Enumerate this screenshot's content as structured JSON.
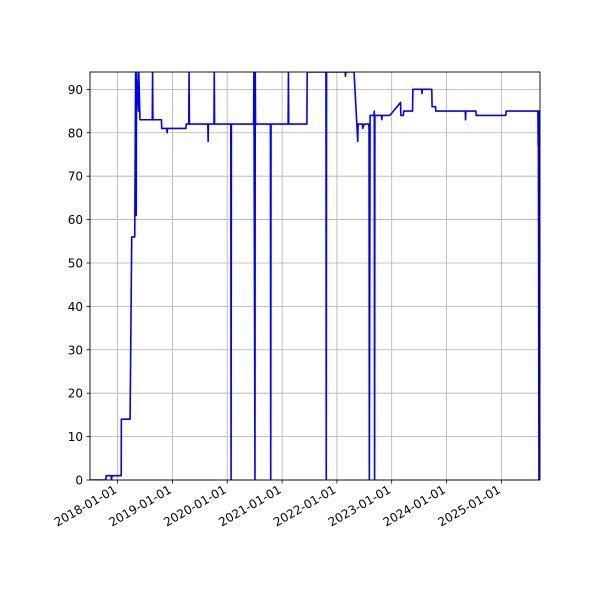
{
  "chart_data": {
    "type": "line",
    "title": "",
    "xlabel": "",
    "ylabel": "",
    "xlim": [
      "2017-07-01",
      "2025-09-15"
    ],
    "ylim": [
      0,
      94
    ],
    "grid": true,
    "line_color": "#0000ff",
    "x_ticks": [
      "2018-01-01",
      "2019-01-01",
      "2020-01-01",
      "2021-01-01",
      "2022-01-01",
      "2023-01-01",
      "2024-01-01",
      "2025-01-01"
    ],
    "y_ticks": [
      0,
      10,
      20,
      30,
      40,
      50,
      60,
      70,
      80,
      90
    ],
    "series": [
      {
        "name": "",
        "points": [
          [
            "2017-07-01",
            0
          ],
          [
            "2017-10-15",
            0
          ],
          [
            "2017-10-16",
            1
          ],
          [
            "2017-11-20",
            1
          ],
          [
            "2017-11-21",
            0
          ],
          [
            "2017-11-25",
            1
          ],
          [
            "2018-01-25",
            1
          ],
          [
            "2018-01-26",
            14
          ],
          [
            "2018-03-25",
            14
          ],
          [
            "2018-04-05",
            56
          ],
          [
            "2018-04-25",
            56
          ],
          [
            "2018-05-01",
            94
          ],
          [
            "2018-05-05",
            61
          ],
          [
            "2018-05-07",
            94
          ],
          [
            "2018-05-20",
            85
          ],
          [
            "2018-05-22",
            94
          ],
          [
            "2018-05-30",
            83
          ],
          [
            "2018-08-20",
            83
          ],
          [
            "2018-08-22",
            94
          ],
          [
            "2018-08-24",
            83
          ],
          [
            "2018-10-20",
            83
          ],
          [
            "2018-10-22",
            81
          ],
          [
            "2018-11-25",
            81
          ],
          [
            "2018-11-27",
            80
          ],
          [
            "2018-11-29",
            81
          ],
          [
            "2019-04-01",
            81
          ],
          [
            "2019-04-03",
            82
          ],
          [
            "2019-04-20",
            82
          ],
          [
            "2019-04-22",
            94
          ],
          [
            "2019-04-24",
            82
          ],
          [
            "2019-08-25",
            82
          ],
          [
            "2019-08-27",
            78
          ],
          [
            "2019-08-29",
            82
          ],
          [
            "2019-10-05",
            82
          ],
          [
            "2019-10-07",
            94
          ],
          [
            "2019-10-09",
            82
          ],
          [
            "2020-01-25",
            82
          ],
          [
            "2020-01-27",
            0
          ],
          [
            "2020-01-29",
            82
          ],
          [
            "2020-06-25",
            82
          ],
          [
            "2020-06-27",
            94
          ],
          [
            "2020-07-04",
            0
          ],
          [
            "2020-07-06",
            94
          ],
          [
            "2020-07-08",
            82
          ],
          [
            "2020-10-15",
            82
          ],
          [
            "2020-10-17",
            0
          ],
          [
            "2020-10-19",
            82
          ],
          [
            "2021-02-10",
            82
          ],
          [
            "2021-02-12",
            94
          ],
          [
            "2021-02-14",
            82
          ],
          [
            "2021-06-15",
            82
          ],
          [
            "2021-06-17",
            94
          ],
          [
            "2021-06-19",
            94
          ],
          [
            "2021-10-20",
            94
          ],
          [
            "2021-10-22",
            0
          ],
          [
            "2021-10-24",
            94
          ],
          [
            "2022-02-25",
            94
          ],
          [
            "2022-02-27",
            93
          ],
          [
            "2022-03-01",
            94
          ],
          [
            "2022-04-25",
            94
          ],
          [
            "2022-05-20",
            78
          ],
          [
            "2022-05-22",
            82
          ],
          [
            "2022-06-20",
            82
          ],
          [
            "2022-06-22",
            81
          ],
          [
            "2022-07-01",
            82
          ],
          [
            "2022-08-01",
            82
          ],
          [
            "2022-08-03",
            81
          ],
          [
            "2022-08-05",
            0
          ],
          [
            "2022-08-10",
            84
          ],
          [
            "2022-09-05",
            84
          ],
          [
            "2022-09-07",
            85
          ],
          [
            "2022-09-09",
            0
          ],
          [
            "2022-09-11",
            84
          ],
          [
            "2022-10-25",
            84
          ],
          [
            "2022-10-27",
            83
          ],
          [
            "2022-10-29",
            84
          ],
          [
            "2022-12-20",
            84
          ],
          [
            "2023-03-01",
            87
          ],
          [
            "2023-03-03",
            84
          ],
          [
            "2023-03-20",
            84
          ],
          [
            "2023-03-22",
            85
          ],
          [
            "2023-05-20",
            85
          ],
          [
            "2023-05-22",
            90
          ],
          [
            "2023-07-20",
            90
          ],
          [
            "2023-07-22",
            89
          ],
          [
            "2023-07-24",
            90
          ],
          [
            "2023-09-25",
            90
          ],
          [
            "2023-09-27",
            86
          ],
          [
            "2023-10-20",
            86
          ],
          [
            "2023-10-22",
            85
          ],
          [
            "2024-05-05",
            85
          ],
          [
            "2024-05-07",
            83
          ],
          [
            "2024-05-09",
            85
          ],
          [
            "2024-07-15",
            85
          ],
          [
            "2024-07-17",
            84
          ],
          [
            "2025-01-30",
            84
          ],
          [
            "2025-02-01",
            85
          ],
          [
            "2025-09-01",
            85
          ],
          [
            "2025-09-03",
            77
          ],
          [
            "2025-09-04",
            85
          ],
          [
            "2025-09-08",
            0
          ],
          [
            "2025-09-12",
            85
          ],
          [
            "2025-09-15",
            85
          ]
        ]
      }
    ]
  }
}
